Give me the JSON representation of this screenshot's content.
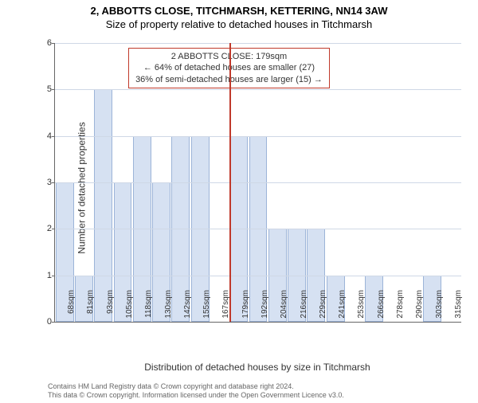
{
  "header": {
    "line1": "2, ABBOTTS CLOSE, TITCHMARSH, KETTERING, NN14 3AW",
    "line2": "Size of property relative to detached houses in Titchmarsh"
  },
  "chart": {
    "type": "histogram",
    "ylabel": "Number of detached properties",
    "xlabel": "Distribution of detached houses by size in Titchmarsh",
    "ylim": [
      0,
      6
    ],
    "ytick_step": 1,
    "bar_fill": "#d6e1f2",
    "bar_border": "#9cb4d8",
    "grid_color": "#cfd8e6",
    "background_color": "#ffffff",
    "marker_color": "#c0392b",
    "marker_x_index": 9,
    "categories": [
      "68sqm",
      "81sqm",
      "93sqm",
      "105sqm",
      "118sqm",
      "130sqm",
      "142sqm",
      "155sqm",
      "167sqm",
      "179sqm",
      "192sqm",
      "204sqm",
      "216sqm",
      "229sqm",
      "241sqm",
      "253sqm",
      "266sqm",
      "278sqm",
      "290sqm",
      "303sqm",
      "315sqm"
    ],
    "values": [
      3,
      1,
      5,
      3,
      4,
      3,
      4,
      4,
      0,
      4,
      4,
      2,
      2,
      2,
      1,
      0,
      1,
      0,
      0,
      1,
      0
    ],
    "annotation": {
      "line1": "2 ABBOTTS CLOSE: 179sqm",
      "line2": "← 64% of detached houses are smaller (27)",
      "line3": "36% of semi-detached houses are larger (15) →"
    }
  },
  "footer": {
    "line1": "Contains HM Land Registry data © Crown copyright and database right 2024.",
    "line2": "This data © Crown copyright. Information licensed under the Open Government Licence v3.0."
  }
}
